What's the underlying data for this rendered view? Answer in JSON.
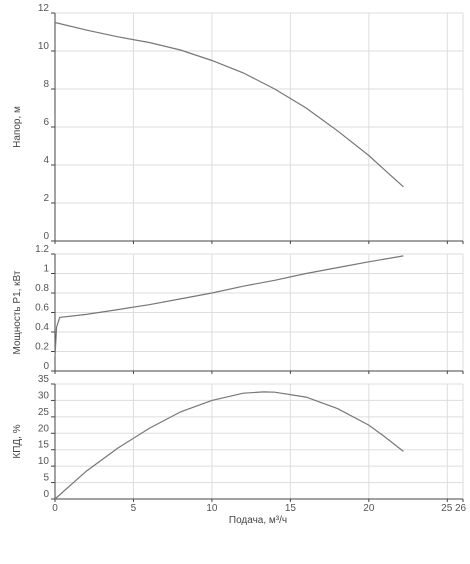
{
  "chart_data": [
    {
      "type": "line",
      "ylabel": "Напор, м",
      "ylim": [
        0,
        12
      ],
      "yticks": [
        0,
        2,
        4,
        6,
        8,
        10,
        12
      ],
      "xlim": [
        0,
        26
      ],
      "grid": true,
      "series": [
        {
          "x": [
            0,
            2,
            4,
            6,
            8,
            10,
            12,
            14,
            16,
            18,
            20,
            21,
            22.2
          ],
          "y": [
            11.5,
            11.1,
            10.75,
            10.45,
            10.05,
            9.5,
            8.85,
            8.0,
            7.0,
            5.8,
            4.5,
            3.75,
            2.85
          ]
        }
      ]
    },
    {
      "type": "line",
      "ylabel": "Мощность P1, кВт",
      "ylim": [
        0,
        1.2
      ],
      "yticks": [
        0,
        0.2,
        0.4,
        0.6,
        0.8,
        1,
        1.2
      ],
      "xlim": [
        0,
        26
      ],
      "grid": true,
      "series": [
        {
          "x": [
            0,
            0.1,
            0.3,
            2,
            4,
            6,
            8,
            10,
            12,
            14,
            16,
            18,
            20,
            22.2
          ],
          "y": [
            0.15,
            0.45,
            0.55,
            0.58,
            0.63,
            0.68,
            0.74,
            0.8,
            0.87,
            0.93,
            1.0,
            1.06,
            1.12,
            1.18
          ]
        }
      ]
    },
    {
      "type": "line",
      "ylabel": "КПД, %",
      "xlabel": "Подача, м³/ч",
      "ylim": [
        0,
        35
      ],
      "yticks": [
        0,
        5,
        10,
        15,
        20,
        25,
        30,
        35
      ],
      "xlim": [
        0,
        26
      ],
      "xticks": [
        0,
        5,
        10,
        15,
        20,
        25,
        26
      ],
      "xtick_labels": [
        "0",
        "5",
        "10",
        "15",
        "20",
        "25",
        "26"
      ],
      "grid": true,
      "series": [
        {
          "x": [
            0,
            2,
            4,
            6,
            8,
            10,
            12,
            13.3,
            14,
            16,
            18,
            20,
            21,
            22.2
          ],
          "y": [
            0,
            8.5,
            15.5,
            21.5,
            26.5,
            30.0,
            32.2,
            32.6,
            32.5,
            31.0,
            27.5,
            22.5,
            19.0,
            14.5
          ]
        }
      ]
    }
  ]
}
